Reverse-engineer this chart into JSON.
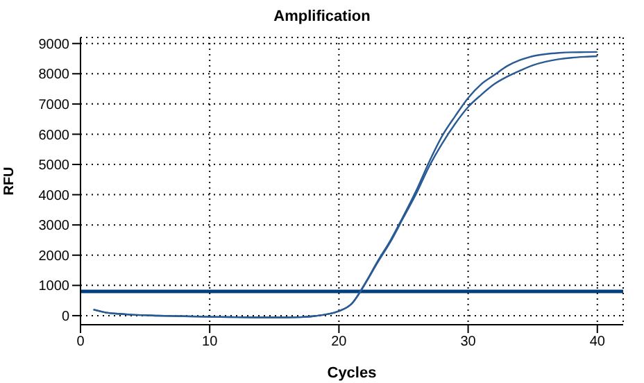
{
  "chart_data": {
    "type": "line",
    "title": "Amplification",
    "xlabel": "Cycles",
    "ylabel": "RFU",
    "x": [
      1,
      2,
      3,
      4,
      6,
      8,
      10,
      12,
      14,
      16,
      17,
      18,
      19,
      20,
      21,
      22,
      23,
      24,
      25,
      26,
      27,
      28,
      29,
      30,
      31,
      32,
      33,
      34,
      35,
      36,
      37,
      38,
      39,
      40
    ],
    "series": [
      {
        "color": "#2a5a94",
        "values": [
          200,
          100,
          60,
          30,
          0,
          -20,
          -40,
          -50,
          -60,
          -60,
          -50,
          -20,
          40,
          150,
          400,
          1050,
          1800,
          2500,
          3300,
          4150,
          5100,
          5950,
          6600,
          7200,
          7650,
          7950,
          8250,
          8450,
          8580,
          8650,
          8690,
          8710,
          8715,
          8720
        ]
      },
      {
        "color": "#2a5a94",
        "values": [
          200,
          100,
          60,
          30,
          0,
          -20,
          -40,
          -50,
          -60,
          -60,
          -50,
          -20,
          40,
          150,
          400,
          1030,
          1760,
          2450,
          3250,
          4050,
          4950,
          5700,
          6350,
          6900,
          7300,
          7650,
          7900,
          8100,
          8280,
          8400,
          8480,
          8530,
          8560,
          8580
        ]
      }
    ],
    "xlim": [
      0,
      42
    ],
    "xticks": [
      0,
      10,
      20,
      30,
      40
    ],
    "ylim": [
      -300,
      9200
    ],
    "yticks": [
      0,
      1000,
      2000,
      3000,
      4000,
      5000,
      6000,
      7000,
      8000,
      9000
    ],
    "grid": true,
    "line_style": "solid",
    "ref_lines": [
      {
        "axis": "y",
        "value": 800,
        "color": "#003f7f"
      }
    ]
  }
}
